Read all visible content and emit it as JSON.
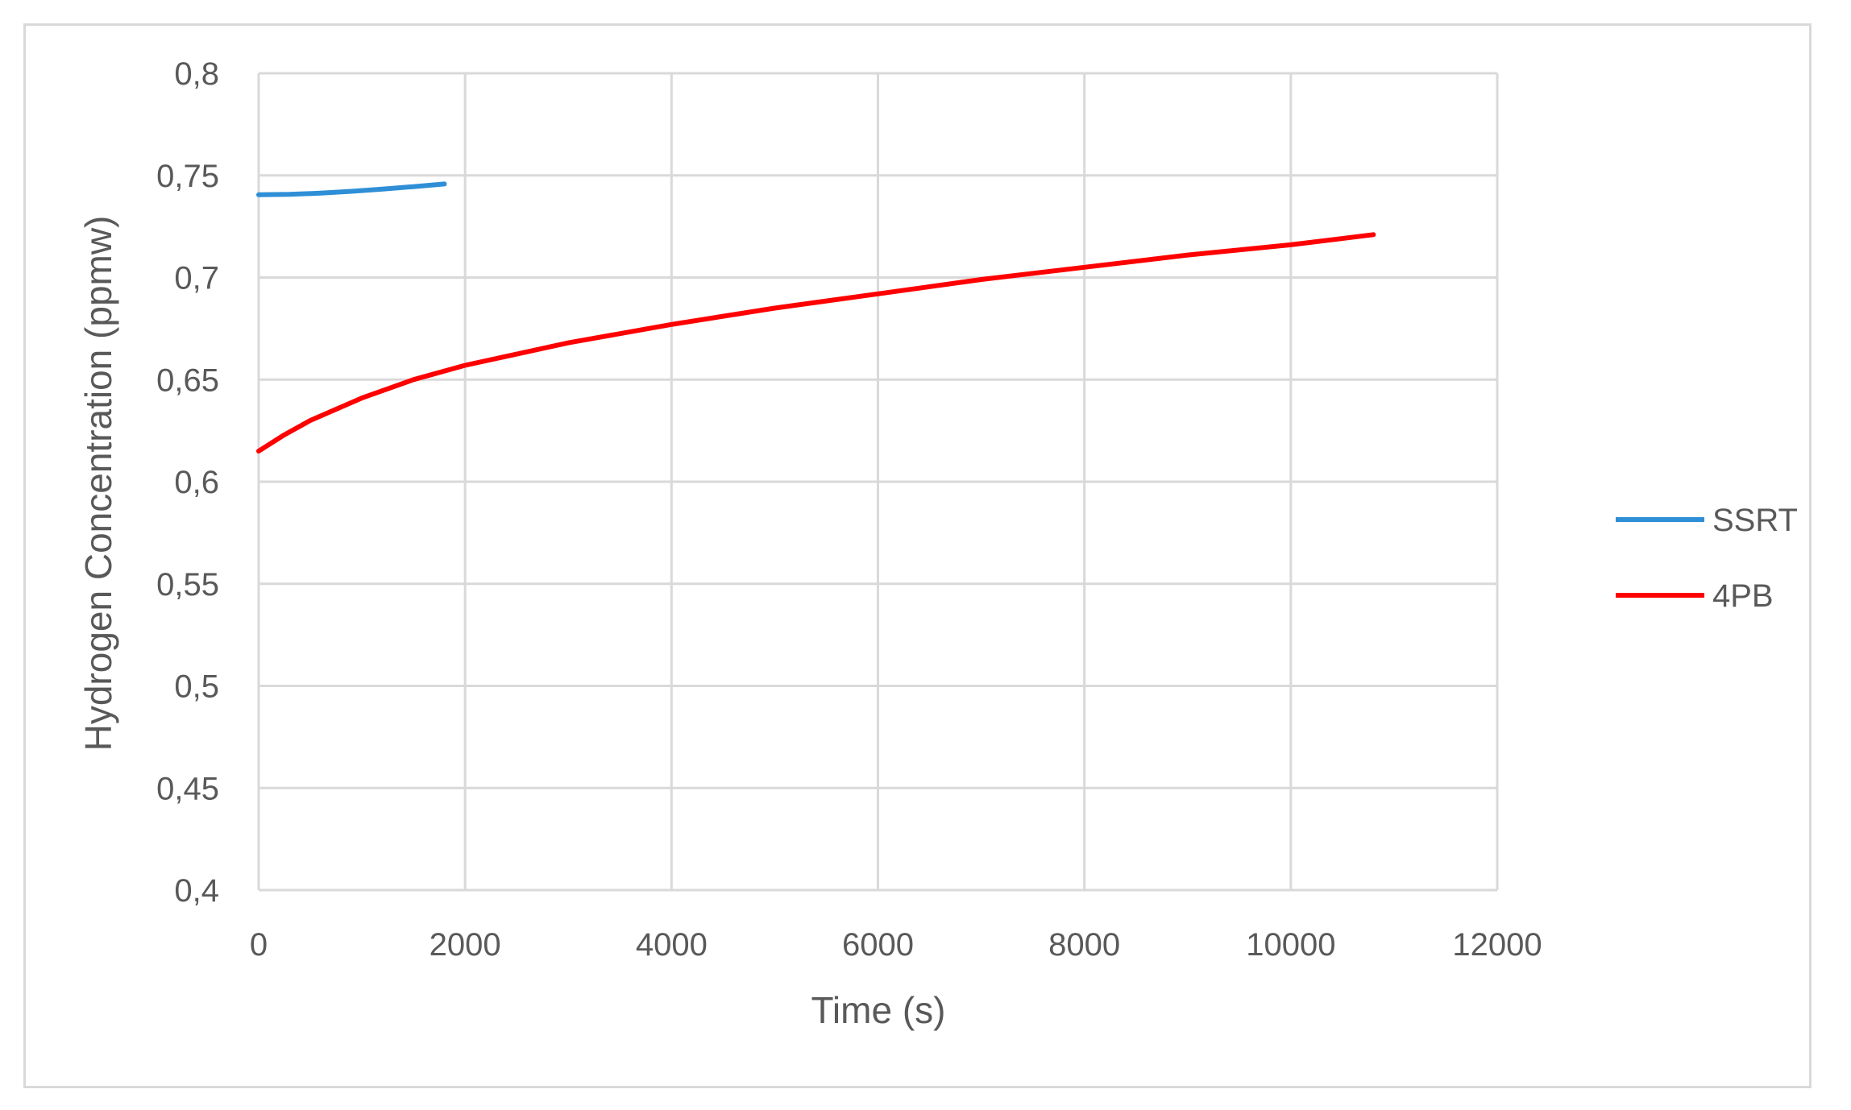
{
  "chart_data": {
    "type": "line",
    "title": "",
    "xlabel": "Time (s)",
    "ylabel": "Hydrogen Concentration (ppmw)",
    "xlim": [
      0,
      12000
    ],
    "ylim": [
      0.4,
      0.8
    ],
    "x_ticks": [
      "0",
      "2000",
      "4000",
      "6000",
      "8000",
      "10000",
      "12000"
    ],
    "y_ticks": [
      "0,4",
      "0,45",
      "0,5",
      "0,55",
      "0,6",
      "0,65",
      "0,7",
      "0,75",
      "0,8"
    ],
    "grid": true,
    "legend_position": "right",
    "series": [
      {
        "name": "SSRT",
        "color": "#2e8fd6",
        "points": [
          [
            0,
            0.7405
          ],
          [
            300,
            0.7407
          ],
          [
            600,
            0.7413
          ],
          [
            900,
            0.7422
          ],
          [
            1200,
            0.7433
          ],
          [
            1500,
            0.7445
          ],
          [
            1800,
            0.7458
          ]
        ]
      },
      {
        "name": "4PB",
        "color": "#ff0000",
        "points": [
          [
            0,
            0.615
          ],
          [
            250,
            0.623
          ],
          [
            500,
            0.63
          ],
          [
            1000,
            0.641
          ],
          [
            1500,
            0.65
          ],
          [
            2000,
            0.657
          ],
          [
            3000,
            0.668
          ],
          [
            4000,
            0.677
          ],
          [
            5000,
            0.685
          ],
          [
            6000,
            0.692
          ],
          [
            7000,
            0.699
          ],
          [
            8000,
            0.705
          ],
          [
            9000,
            0.711
          ],
          [
            10000,
            0.716
          ],
          [
            10800,
            0.721
          ]
        ]
      }
    ]
  }
}
